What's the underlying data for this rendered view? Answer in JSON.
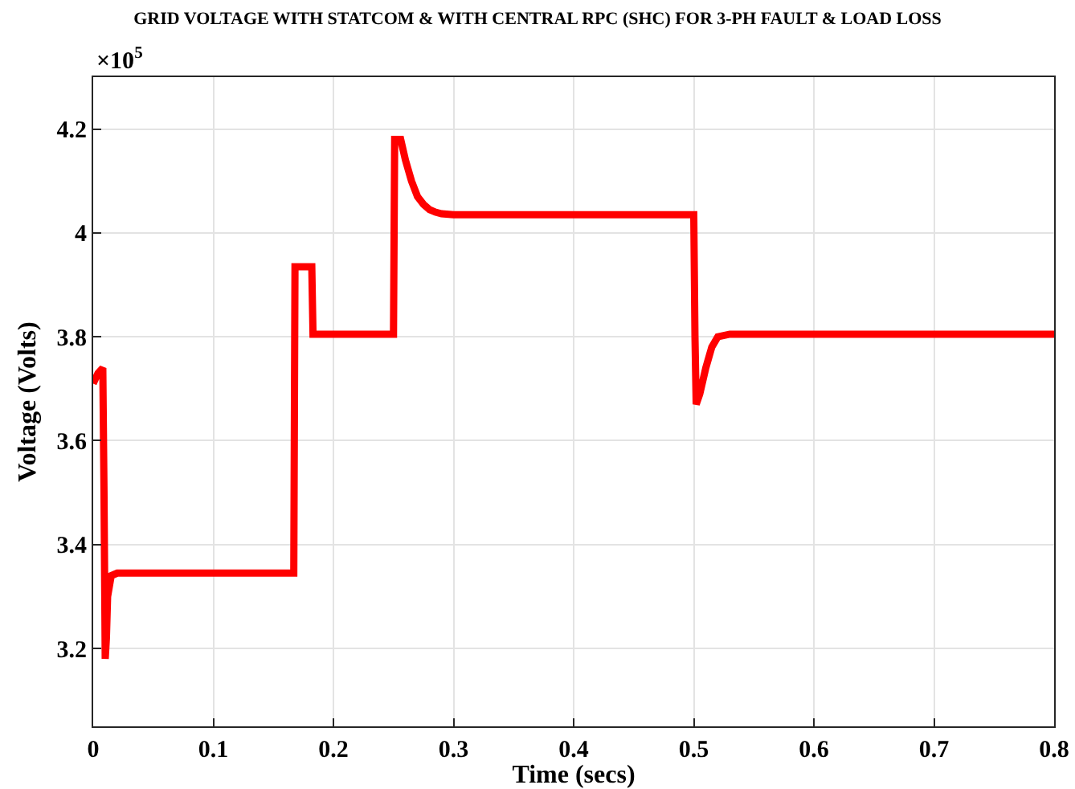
{
  "chart_data": {
    "type": "line",
    "title": "GRID VOLTAGE WITH STATCOM & WITH CENTRAL RPC (SHC) FOR 3-PH FAULT & LOAD LOSS",
    "xlabel": "Time (secs)",
    "ylabel": "Voltage (Volts)",
    "annotations": [
      "×10$^{5}$"
    ],
    "series": [
      {
        "color": "#ff0000",
        "x": [
          0,
          0.004,
          0.008,
          0.009,
          0.01,
          0.011,
          0.012,
          0.015,
          0.02,
          0.1,
          0.167,
          0.168,
          0.182,
          0.183,
          0.25,
          0.251,
          0.256,
          0.26,
          0.265,
          0.27,
          0.275,
          0.28,
          0.285,
          0.29,
          0.3,
          0.35,
          0.5,
          0.501,
          0.502,
          0.505,
          0.51,
          0.515,
          0.52,
          0.53,
          0.6,
          0.8
        ],
        "values": [
          3.71,
          3.73,
          3.74,
          3.5,
          3.18,
          3.22,
          3.3,
          3.34,
          3.345,
          3.345,
          3.345,
          3.935,
          3.935,
          3.805,
          3.805,
          4.18,
          4.18,
          4.14,
          4.1,
          4.07,
          4.055,
          4.045,
          4.04,
          4.037,
          4.035,
          4.035,
          4.035,
          3.8,
          3.67,
          3.69,
          3.74,
          3.78,
          3.8,
          3.805,
          3.805,
          3.805
        ]
      }
    ],
    "xlim": [
      0,
      0.8
    ],
    "xticks": [
      0,
      0.1,
      0.2,
      0.3,
      0.4,
      0.5,
      0.6,
      0.7,
      0.8
    ],
    "ylim": [
      3.05,
      4.3
    ],
    "yticks": [
      3.2,
      3.4,
      3.6,
      3.8,
      4,
      4.2
    ],
    "grid": true,
    "line_style": "solid",
    "marker": "none"
  }
}
